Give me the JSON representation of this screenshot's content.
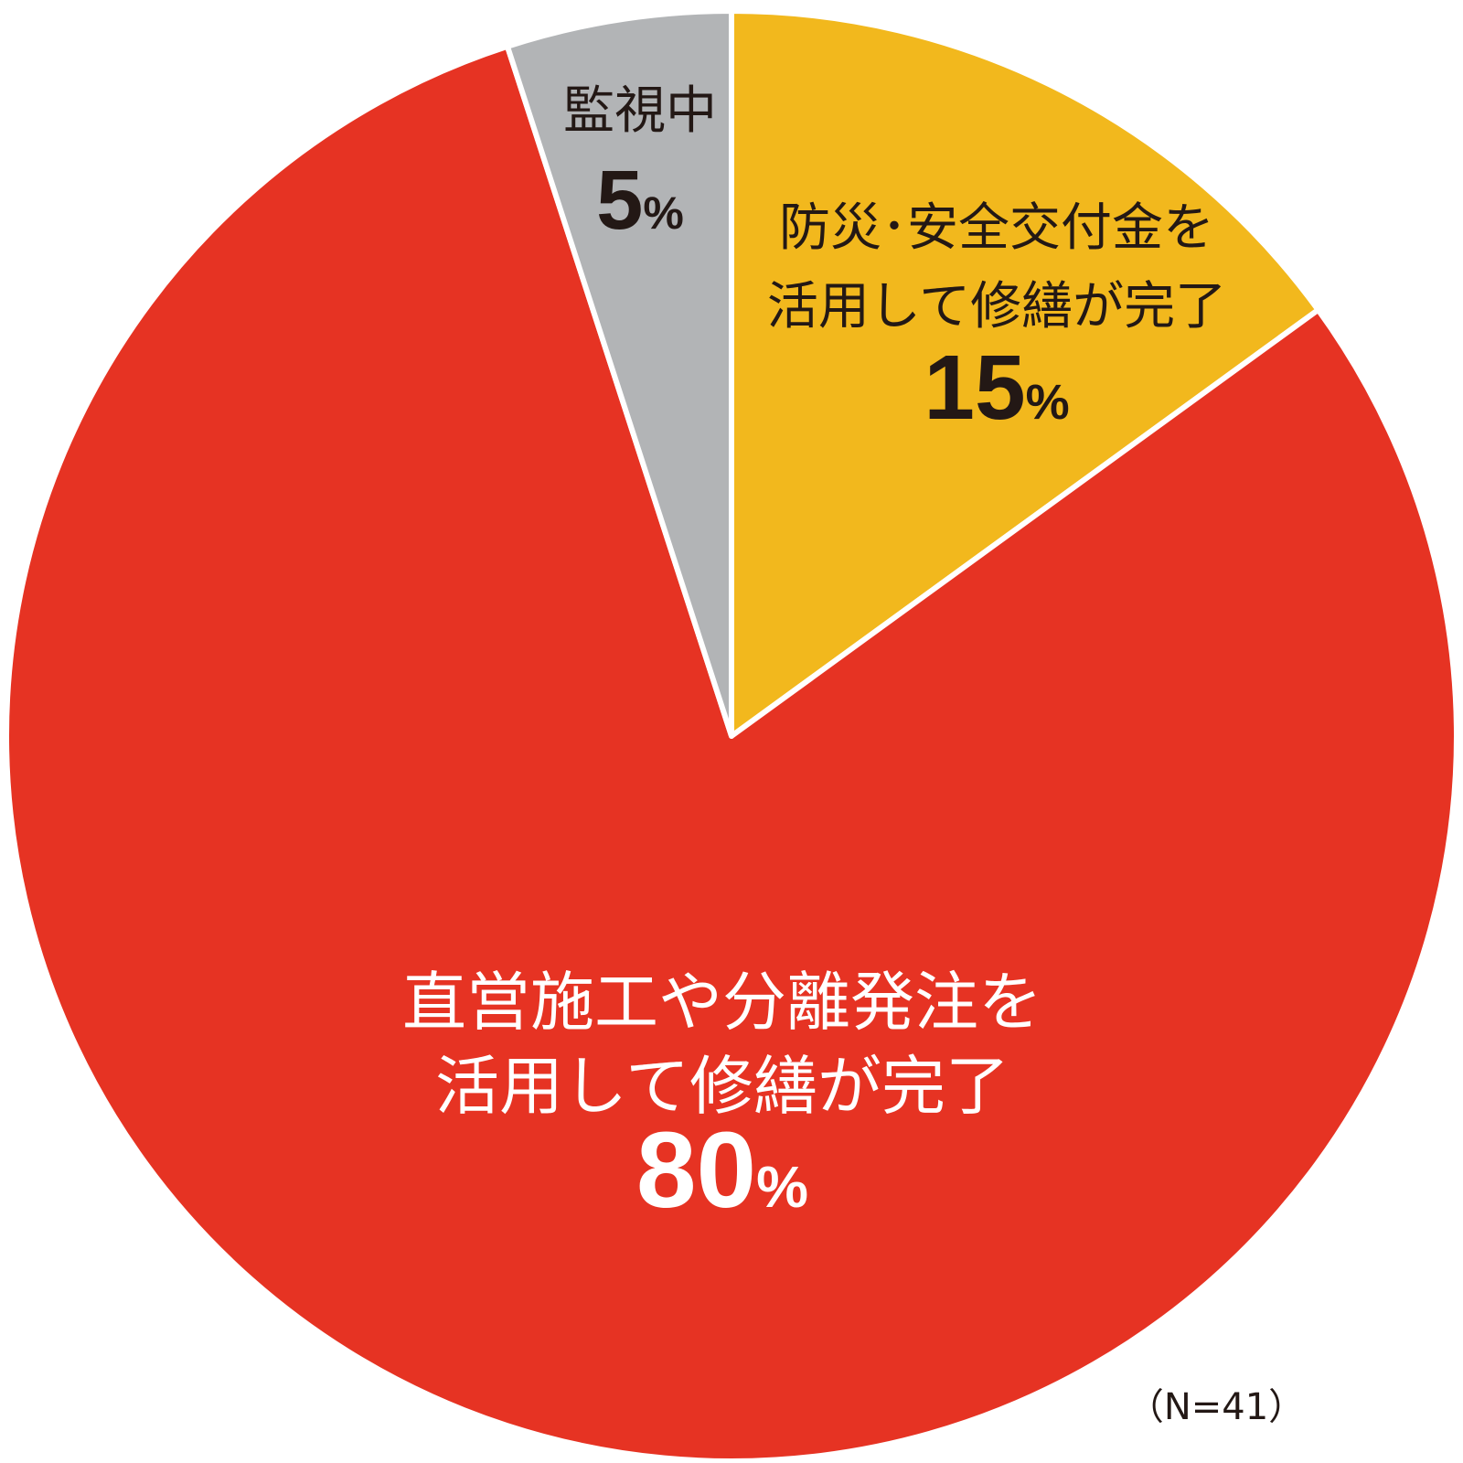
{
  "chart_data": {
    "type": "pie",
    "note": "（N=41）",
    "slices": [
      {
        "label_lines": [
          "防災･安全交付金を",
          "活用して修繕が完了"
        ],
        "value": 15,
        "value_text": "15",
        "percent_sign": "%",
        "color": "#F2B81D",
        "text_color": "#231815"
      },
      {
        "label_lines": [
          "直営施工や分離発注を",
          "活用して修繕が完了"
        ],
        "value": 80,
        "value_text": "80",
        "percent_sign": "%",
        "color": "#E63323",
        "text_color": "#ffffff"
      },
      {
        "label_lines": [
          "監視中"
        ],
        "value": 5,
        "value_text": "5",
        "percent_sign": "%",
        "color": "#B2B4B6",
        "text_color": "#231815"
      }
    ]
  }
}
